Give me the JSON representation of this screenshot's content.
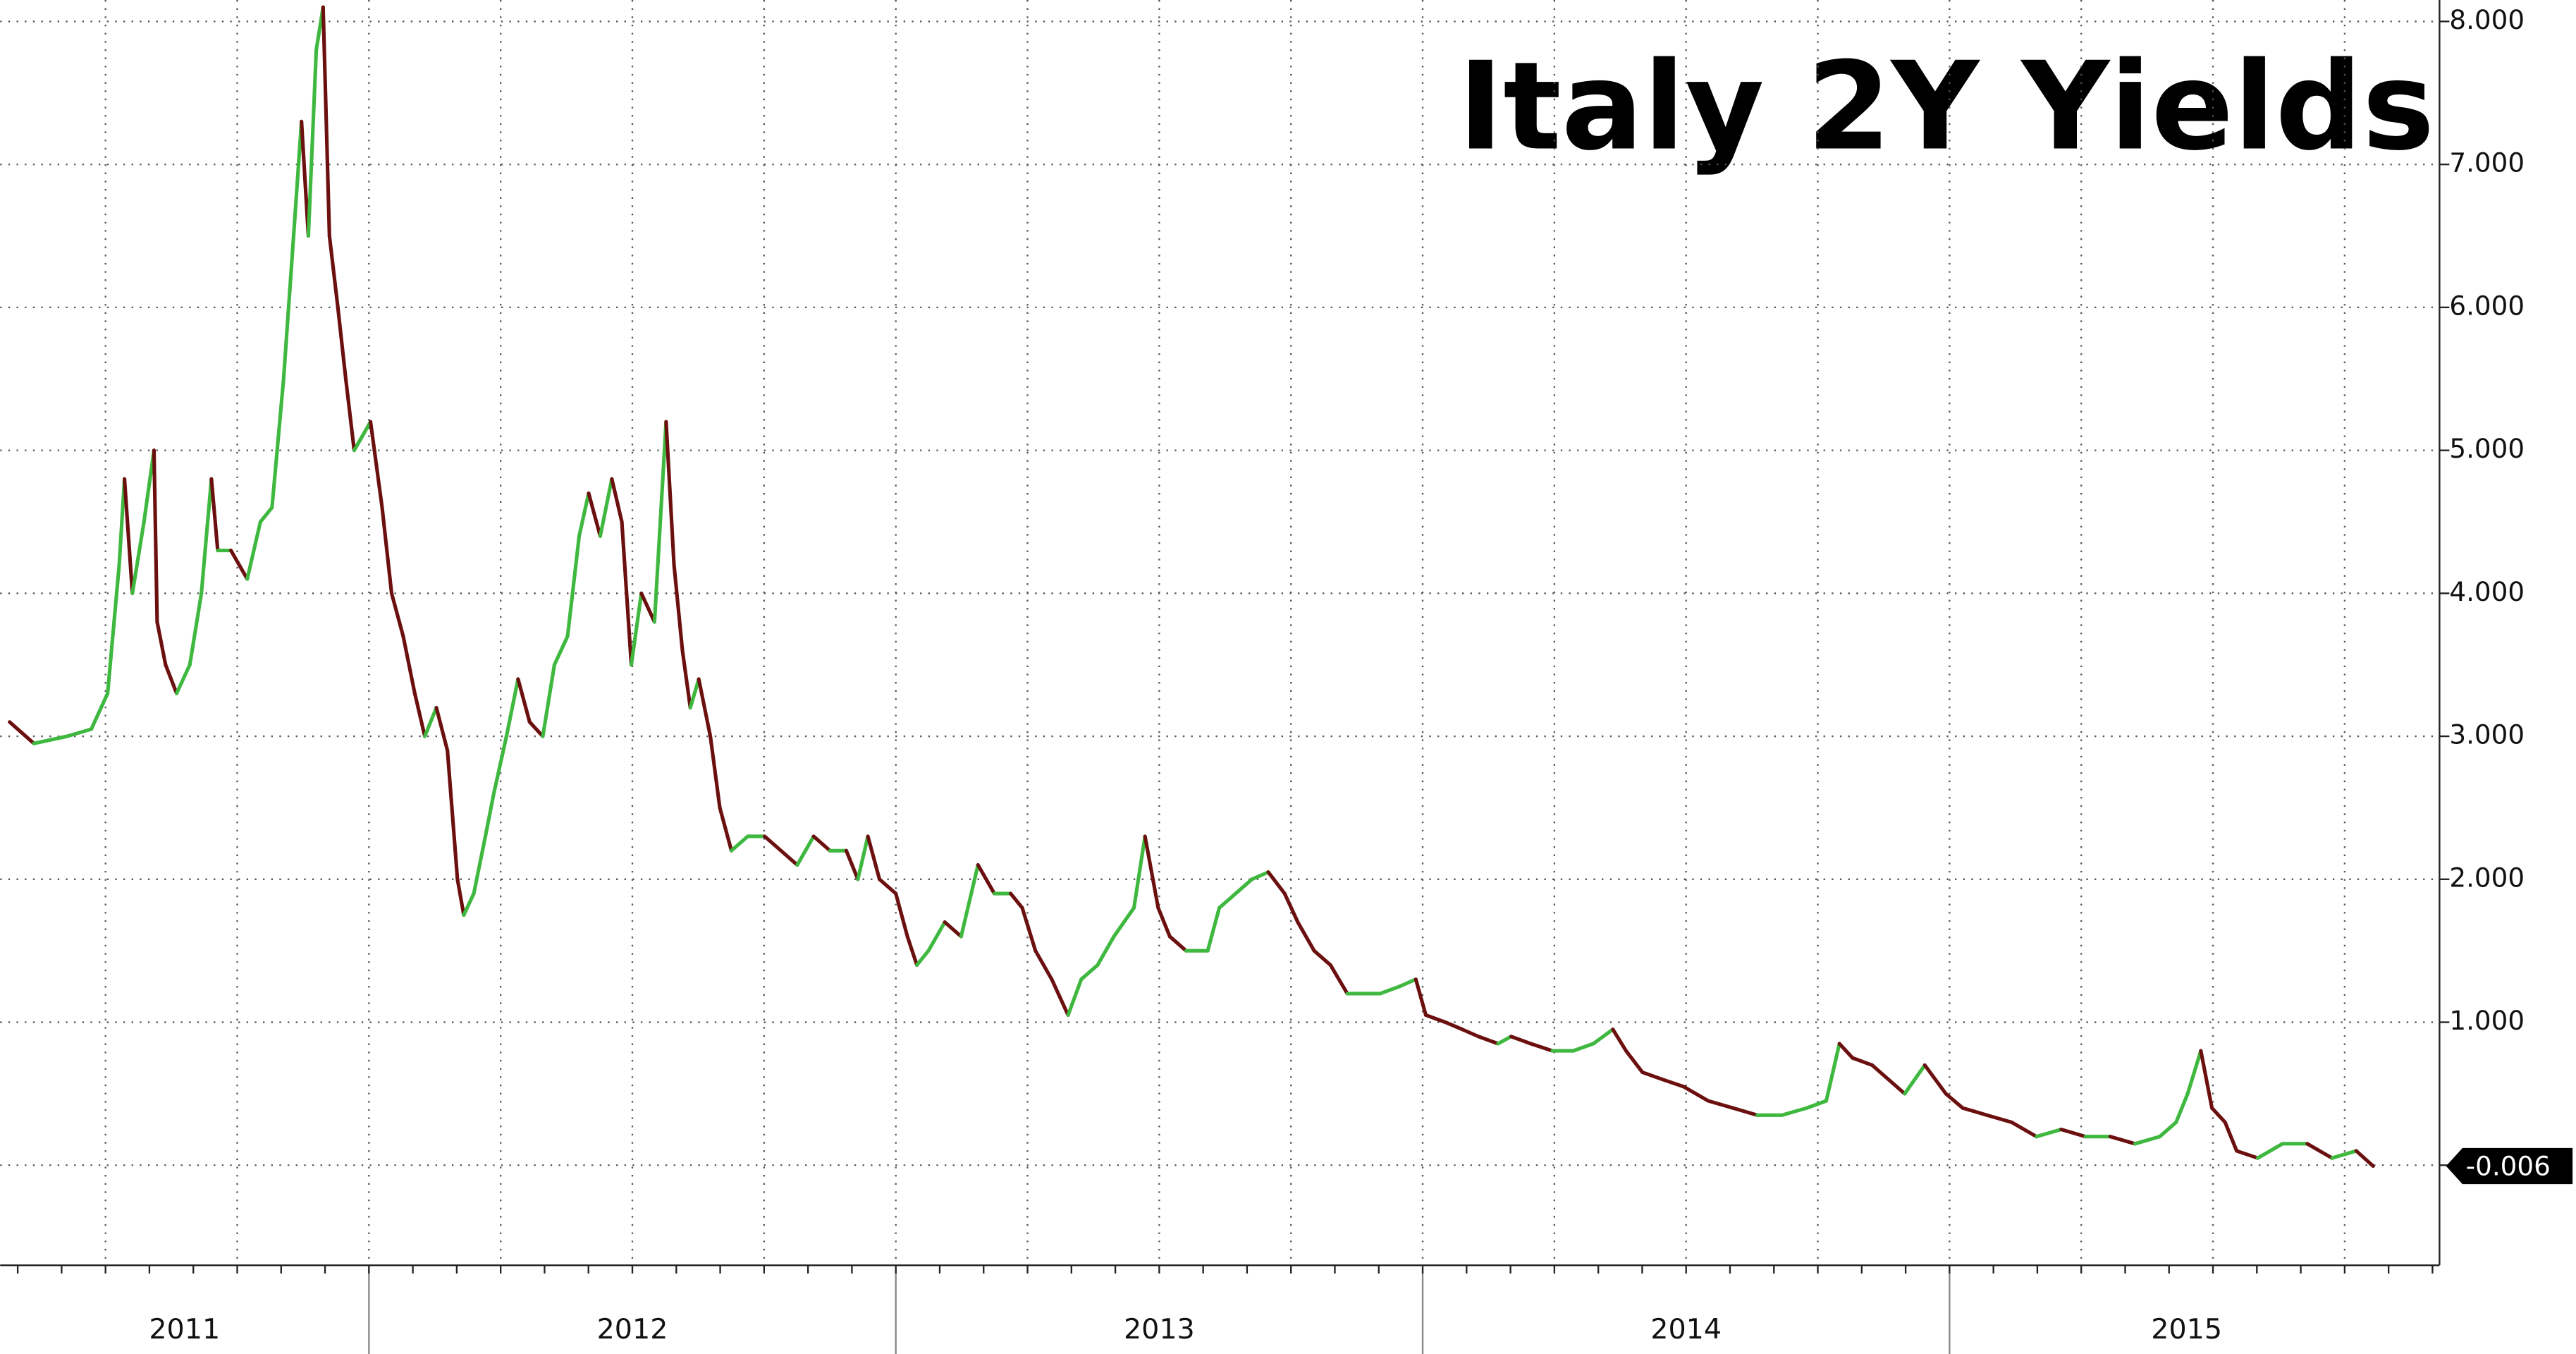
{
  "chart_data": {
    "type": "line",
    "title": "Italy 2Y Yields",
    "x": [
      2011.318,
      2011.364,
      2011.427,
      2011.473,
      2011.504,
      2011.526,
      2011.536,
      2011.551,
      2011.573,
      2011.592,
      2011.598,
      2011.614,
      2011.635,
      2011.66,
      2011.682,
      2011.701,
      2011.713,
      2011.738,
      2011.769,
      2011.794,
      2011.816,
      2011.838,
      2011.857,
      2011.872,
      2011.885,
      2011.9,
      2011.913,
      2011.925,
      2011.941,
      2011.956,
      2011.972,
      2012.003,
      2012.025,
      2012.043,
      2012.065,
      2012.087,
      2012.106,
      2012.128,
      2012.149,
      2012.168,
      2012.18,
      2012.199,
      2012.221,
      2012.237,
      2012.261,
      2012.283,
      2012.305,
      2012.33,
      2012.352,
      2012.377,
      2012.399,
      2012.417,
      2012.439,
      2012.461,
      2012.48,
      2012.498,
      2012.517,
      2012.542,
      2012.564,
      2012.579,
      2012.595,
      2012.61,
      2012.626,
      2012.648,
      2012.666,
      2012.688,
      2012.719,
      2012.751,
      2012.782,
      2012.813,
      2012.844,
      2012.875,
      2012.906,
      2012.928,
      2012.947,
      2012.969,
      2013.0,
      2013.022,
      2013.04,
      2013.062,
      2013.093,
      2013.124,
      2013.156,
      2013.187,
      2013.218,
      2013.24,
      2013.265,
      2013.296,
      2013.327,
      2013.352,
      2013.383,
      2013.414,
      2013.452,
      2013.473,
      2013.498,
      2013.52,
      2013.551,
      2013.592,
      2013.614,
      2013.645,
      2013.676,
      2013.707,
      2013.738,
      2013.763,
      2013.794,
      2013.825,
      2013.857,
      2013.888,
      2013.919,
      2013.956,
      2013.987,
      2014.006,
      2014.043,
      2014.075,
      2014.106,
      2014.143,
      2014.168,
      2014.205,
      2014.246,
      2014.286,
      2014.324,
      2014.361,
      2014.386,
      2014.417,
      2014.455,
      2014.495,
      2014.542,
      2014.589,
      2014.635,
      2014.682,
      2014.729,
      2014.766,
      2014.791,
      2014.816,
      2014.853,
      2014.884,
      2014.915,
      2014.953,
      2014.993,
      2015.025,
      2015.071,
      2015.118,
      2015.165,
      2015.212,
      2015.258,
      2015.305,
      2015.352,
      2015.399,
      2015.43,
      2015.452,
      2015.477,
      2015.498,
      2015.523,
      2015.545,
      2015.585,
      2015.632,
      2015.679,
      2015.726,
      2015.772,
      2015.804
    ],
    "values": [
      3.1,
      2.95,
      3.0,
      3.05,
      3.3,
      4.2,
      4.8,
      4.0,
      4.5,
      5.0,
      3.8,
      3.5,
      3.3,
      3.5,
      4.0,
      4.8,
      4.3,
      4.3,
      4.1,
      4.5,
      4.6,
      5.5,
      6.5,
      7.3,
      6.5,
      7.8,
      8.1,
      6.5,
      6.0,
      5.5,
      5.0,
      5.2,
      4.6,
      4.0,
      3.7,
      3.3,
      3.0,
      3.2,
      2.9,
      2.0,
      1.75,
      1.9,
      2.3,
      2.6,
      3.0,
      3.4,
      3.1,
      3.0,
      3.5,
      3.7,
      4.4,
      4.7,
      4.4,
      4.8,
      4.5,
      3.5,
      4.0,
      3.8,
      5.2,
      4.2,
      3.6,
      3.2,
      3.4,
      3.0,
      2.5,
      2.2,
      2.3,
      2.3,
      2.2,
      2.1,
      2.3,
      2.2,
      2.2,
      2.0,
      2.3,
      2.0,
      1.9,
      1.6,
      1.4,
      1.5,
      1.7,
      1.6,
      2.1,
      1.9,
      1.9,
      1.8,
      1.5,
      1.3,
      1.05,
      1.3,
      1.4,
      1.6,
      1.8,
      2.3,
      1.8,
      1.6,
      1.5,
      1.5,
      1.8,
      1.9,
      2.0,
      2.05,
      1.9,
      1.7,
      1.5,
      1.4,
      1.2,
      1.2,
      1.2,
      1.25,
      1.3,
      1.05,
      1.0,
      0.95,
      0.9,
      0.85,
      0.9,
      0.85,
      0.8,
      0.8,
      0.85,
      0.95,
      0.8,
      0.65,
      0.6,
      0.55,
      0.45,
      0.4,
      0.35,
      0.35,
      0.4,
      0.45,
      0.85,
      0.75,
      0.7,
      0.6,
      0.5,
      0.7,
      0.5,
      0.4,
      0.35,
      0.3,
      0.2,
      0.25,
      0.2,
      0.2,
      0.15,
      0.2,
      0.3,
      0.5,
      0.8,
      0.4,
      0.3,
      0.1,
      0.05,
      0.15,
      0.15,
      0.05,
      0.1,
      -0.006
    ],
    "last_label": "-0.006",
    "up_color": "#3fb83f",
    "down_color": "#6b0f0f",
    "xlim": [
      2011.3,
      2015.93
    ],
    "xticks": [
      {
        "value": 2011.65,
        "label": "2011"
      },
      {
        "value": 2012.5,
        "label": "2012"
      },
      {
        "value": 2013.5,
        "label": "2013"
      },
      {
        "value": 2014.5,
        "label": "2014"
      },
      {
        "value": 2015.45,
        "label": "2015"
      }
    ],
    "ylim": [
      -0.7,
      8.15
    ],
    "yticks": [
      {
        "value": 0,
        "label": ""
      },
      {
        "value": 1,
        "label": "1.000"
      },
      {
        "value": 2,
        "label": "2.000"
      },
      {
        "value": 3,
        "label": "3.000"
      },
      {
        "value": 4,
        "label": "4.000"
      },
      {
        "value": 5,
        "label": "5.000"
      },
      {
        "value": 6,
        "label": "6.000"
      },
      {
        "value": 7,
        "label": "7.000"
      },
      {
        "value": 8,
        "label": "8.000"
      }
    ],
    "grid": true
  }
}
